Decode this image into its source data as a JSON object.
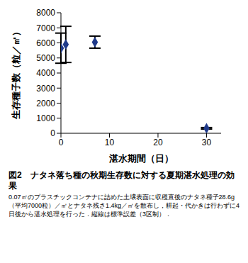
{
  "chart_data": {
    "type": "scatter",
    "title": "図2　ナタネ落ち種の秋期生存数に対する夏期湛水処理の効果",
    "subtitle": "0.07㎡のプラスチックコンテナに詰めた土壌表面に収穫直後のナタネ種子28.6g（平均7000粒）／㎡とナタネ残さ1.4kg／㎡を散布し，耕起・代かきは行わずに4日後から湛水処理を行った．縦線は標準誤差（3区制）．",
    "x_label": "湛水期間（日）",
    "y_label": "生存種子数（粒／㎡）",
    "x": [
      0,
      1,
      7,
      30
    ],
    "values": [
      5650,
      5900,
      6050,
      330
    ],
    "error": [
      1000,
      1200,
      400,
      50
    ],
    "color": "#1f3a8a",
    "marker": "diamond",
    "xlim": [
      0,
      33
    ],
    "xticks": [
      0,
      10,
      20,
      30
    ],
    "ylim": [
      0,
      8000
    ],
    "yticks": [
      0,
      1000,
      2000,
      3000,
      4000,
      5000,
      6000,
      7000,
      8000
    ],
    "grid": false
  }
}
